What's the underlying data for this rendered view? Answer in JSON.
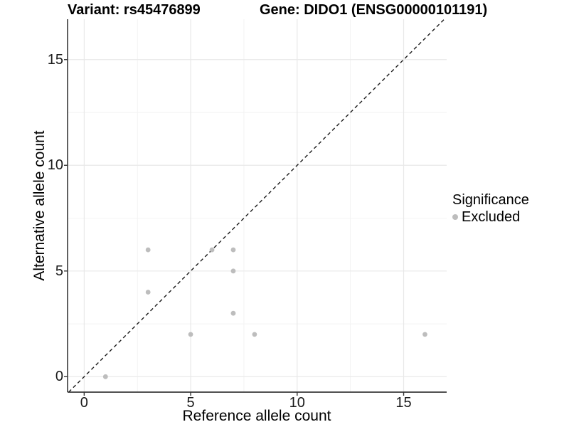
{
  "chart_data": {
    "type": "scatter",
    "title_left": "Variant: rs45476899",
    "title_right": "Gene: DIDO1 (ENSG00000101191)",
    "xlabel": "Reference allele count",
    "ylabel": "Alternative allele count",
    "xlim": [
      -0.78,
      17.02
    ],
    "ylim": [
      -0.73,
      16.91
    ],
    "x_ticks": [
      0,
      5,
      10,
      15
    ],
    "y_ticks": [
      0,
      5,
      10,
      15
    ],
    "x_minor_ticks": [
      2.5,
      7.5,
      12.5
    ],
    "y_minor_ticks": [
      2.5,
      7.5,
      12.5
    ],
    "grid": true,
    "series": [
      {
        "name": "Excluded",
        "color": "#bdbdbd",
        "points": [
          [
            1,
            0
          ],
          [
            3,
            4
          ],
          [
            3,
            6
          ],
          [
            5,
            2
          ],
          [
            6,
            6
          ],
          [
            7,
            3
          ],
          [
            7,
            5
          ],
          [
            7,
            6
          ],
          [
            8,
            2
          ],
          [
            16,
            2
          ]
        ]
      }
    ],
    "reference_line": {
      "type": "identity",
      "style": "dashed",
      "color": "#1a1a1a",
      "note": "y = x diagonal from panel corner to corner"
    },
    "legend": {
      "title": "Significance",
      "position": "right",
      "items": [
        {
          "label": "Excluded",
          "color": "#bdbdbd"
        }
      ]
    },
    "colors": {
      "background": "#ffffff",
      "axis_line": "#383838",
      "tick_mark": "#333333",
      "major_grid": "#e8e8e8",
      "minor_grid": "#f2f2f2",
      "point": "#bdbdbd",
      "dashed_line": "#1a1a1a"
    }
  }
}
